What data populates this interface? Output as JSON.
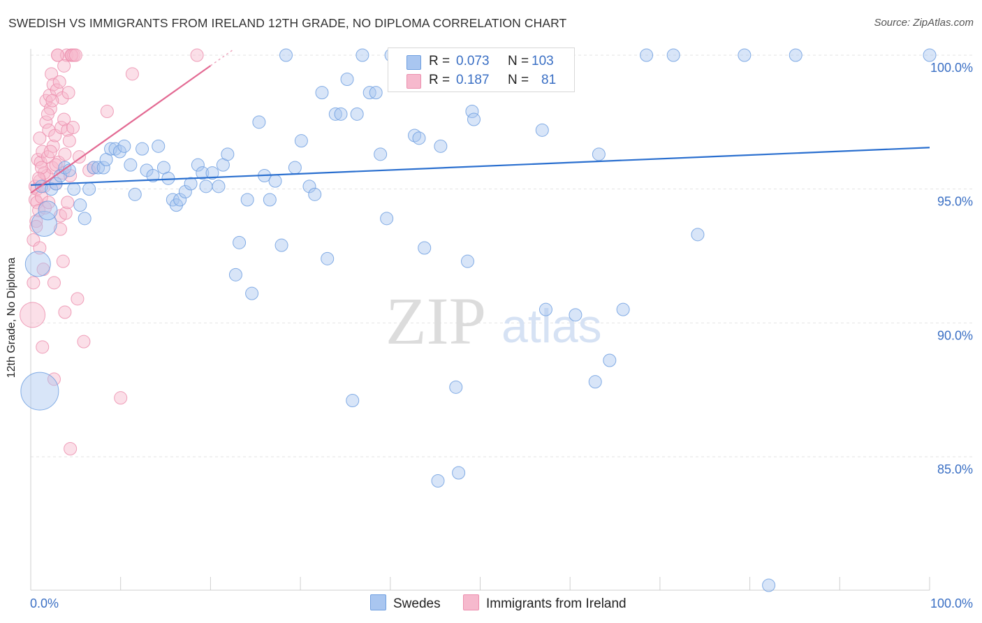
{
  "header": {
    "title": "SWEDISH VS IMMIGRANTS FROM IRELAND 12TH GRADE, NO DIPLOMA CORRELATION CHART",
    "source": "Source: ZipAtlas.com"
  },
  "watermark": {
    "zip": "ZIP",
    "atlas": "atlas"
  },
  "legend": {
    "rows": [
      {
        "r_label": "R =",
        "r_value": "0.073",
        "n_label": "N =",
        "n_value": "103",
        "color": "#a9c6f0"
      },
      {
        "r_label": "R =",
        "r_value": "0.187",
        "n_label": "N =",
        "n_value": "81",
        "color": "#f6b9cd"
      }
    ]
  },
  "bottom_legend": {
    "swedes": "Swedes",
    "ireland": "Immigrants from Ireland"
  },
  "chart_data": {
    "type": "scatter",
    "title": "SWEDISH VS IMMIGRANTS FROM IRELAND 12TH GRADE, NO DIPLOMA CORRELATION CHART",
    "xlabel": "",
    "ylabel": "12th Grade, No Diploma",
    "xlim": [
      0,
      100
    ],
    "ylim": [
      80.2,
      100.7
    ],
    "x_tick_labels": [
      {
        "value": 0,
        "label": "0.0%"
      },
      {
        "value": 100,
        "label": "100.0%"
      }
    ],
    "x_minor_ticks": [
      10,
      20,
      30,
      40,
      50,
      60,
      70,
      80,
      90,
      100
    ],
    "y_ticks": [
      {
        "value": 100,
        "label": "100.0%"
      },
      {
        "value": 95,
        "label": "95.0%"
      },
      {
        "value": 90,
        "label": "90.0%"
      },
      {
        "value": 85,
        "label": "85.0%"
      }
    ],
    "colors": {
      "swedes_fill": "#a9c6f0",
      "swedes_stroke": "#6f9fe0",
      "swedes_line": "#2a6fcf",
      "ireland_fill": "#f6b9cd",
      "ireland_stroke": "#ec8fae",
      "ireland_line": "#e36a93",
      "tick_label": "#3a6fc4",
      "grid": "#e3e3e3"
    },
    "series": [
      {
        "name": "Swedes",
        "trend": {
          "x0": 0,
          "y0": 95.15,
          "x1": 100,
          "y1": 96.55
        },
        "points": [
          [
            1.0,
            87.45,
            3
          ],
          [
            0.8,
            92.2,
            2
          ],
          [
            1.5,
            93.7,
            2
          ],
          [
            1.9,
            94.2,
            1.5
          ],
          [
            1.2,
            95.1,
            1
          ],
          [
            2.3,
            95.0,
            1
          ],
          [
            2.8,
            95.2,
            1
          ],
          [
            3.3,
            95.5,
            1
          ],
          [
            3.8,
            95.8,
            1
          ],
          [
            4.3,
            95.7,
            1
          ],
          [
            4.8,
            95.0,
            1
          ],
          [
            5.5,
            94.4,
            1
          ],
          [
            6.0,
            93.9,
            1
          ],
          [
            6.5,
            95.0,
            1
          ],
          [
            7.0,
            95.8,
            1
          ],
          [
            7.5,
            95.8,
            1
          ],
          [
            8.1,
            95.8,
            1
          ],
          [
            8.4,
            96.1,
            1
          ],
          [
            8.9,
            96.5,
            1
          ],
          [
            9.4,
            96.5,
            1
          ],
          [
            9.9,
            96.4,
            1
          ],
          [
            10.4,
            96.6,
            1
          ],
          [
            11.1,
            95.9,
            1
          ],
          [
            11.6,
            94.8,
            1
          ],
          [
            12.4,
            96.5,
            1
          ],
          [
            12.9,
            95.7,
            1
          ],
          [
            13.6,
            95.5,
            1
          ],
          [
            14.2,
            96.6,
            1
          ],
          [
            14.8,
            95.8,
            1
          ],
          [
            15.3,
            95.4,
            1
          ],
          [
            15.8,
            94.6,
            1
          ],
          [
            16.2,
            94.4,
            1
          ],
          [
            16.6,
            94.6,
            1
          ],
          [
            17.2,
            94.9,
            1
          ],
          [
            17.8,
            95.2,
            1
          ],
          [
            18.6,
            95.9,
            1
          ],
          [
            19.1,
            95.6,
            1
          ],
          [
            19.5,
            95.1,
            1
          ],
          [
            20.2,
            95.6,
            1
          ],
          [
            20.9,
            95.1,
            1
          ],
          [
            21.4,
            95.9,
            1
          ],
          [
            21.9,
            96.3,
            1
          ],
          [
            23.2,
            93.0,
            1
          ],
          [
            22.8,
            91.8,
            1
          ],
          [
            24.1,
            94.6,
            1
          ],
          [
            24.6,
            91.1,
            1
          ],
          [
            25.4,
            97.5,
            1
          ],
          [
            26.0,
            95.5,
            1
          ],
          [
            26.6,
            94.6,
            1
          ],
          [
            27.2,
            95.3,
            1
          ],
          [
            27.9,
            92.9,
            1
          ],
          [
            28.4,
            100.0,
            1
          ],
          [
            29.4,
            95.8,
            1
          ],
          [
            30.1,
            96.8,
            1
          ],
          [
            31.0,
            95.1,
            1
          ],
          [
            31.6,
            94.8,
            1
          ],
          [
            32.4,
            98.6,
            1
          ],
          [
            33.0,
            92.4,
            1
          ],
          [
            33.9,
            97.8,
            1
          ],
          [
            34.5,
            97.8,
            1
          ],
          [
            35.2,
            99.1,
            1
          ],
          [
            35.8,
            87.1,
            1
          ],
          [
            36.3,
            97.8,
            1
          ],
          [
            36.9,
            100.0,
            1
          ],
          [
            37.7,
            98.6,
            1
          ],
          [
            38.4,
            98.6,
            1
          ],
          [
            38.9,
            96.3,
            1
          ],
          [
            39.6,
            93.9,
            1
          ],
          [
            40.1,
            100.0,
            1
          ],
          [
            40.6,
            100.0,
            1
          ],
          [
            41.3,
            99.0,
            1
          ],
          [
            42.0,
            100.0,
            1
          ],
          [
            42.7,
            97.0,
            1
          ],
          [
            43.2,
            96.9,
            1
          ],
          [
            43.8,
            92.8,
            1
          ],
          [
            45.0,
            100.0,
            1
          ],
          [
            45.6,
            96.6,
            1
          ],
          [
            46.1,
            100.0,
            1
          ],
          [
            47.3,
            87.6,
            1
          ],
          [
            48.2,
            100.0,
            1
          ],
          [
            48.6,
            92.3,
            1
          ],
          [
            49.1,
            97.9,
            1
          ],
          [
            51.3,
            100.0,
            1
          ],
          [
            54.2,
            100.0,
            1
          ],
          [
            56.9,
            97.2,
            1
          ],
          [
            57.8,
            100.0,
            1
          ],
          [
            59.7,
            100.0,
            1
          ],
          [
            60.6,
            90.3,
            1
          ],
          [
            62.8,
            87.8,
            1
          ],
          [
            63.2,
            96.3,
            1
          ],
          [
            64.4,
            88.6,
            1
          ],
          [
            65.9,
            90.5,
            1
          ],
          [
            68.5,
            100.0,
            1
          ],
          [
            71.5,
            100.0,
            1
          ],
          [
            74.2,
            93.3,
            1
          ],
          [
            79.4,
            100.0,
            1
          ],
          [
            82.1,
            80.2,
            1
          ],
          [
            85.1,
            100.0,
            1
          ],
          [
            100.0,
            100.0,
            1
          ],
          [
            45.3,
            84.1,
            1
          ],
          [
            47.6,
            84.4,
            1
          ],
          [
            57.3,
            90.5,
            1
          ],
          [
            49.3,
            97.6,
            1
          ]
        ]
      },
      {
        "name": "Immigrants from Ireland",
        "trend": {
          "x0": 0,
          "y0": 94.85,
          "x1": 22.5,
          "y1": 100.2,
          "solid_until_x": 20
        },
        "points": [
          [
            0.2,
            90.3,
            2
          ],
          [
            0.3,
            91.5,
            1
          ],
          [
            0.3,
            93.1,
            1
          ],
          [
            0.5,
            94.6,
            1
          ],
          [
            0.5,
            95.1,
            1
          ],
          [
            0.6,
            93.8,
            1
          ],
          [
            0.7,
            94.5,
            1
          ],
          [
            0.7,
            95.0,
            1
          ],
          [
            0.8,
            96.1,
            1
          ],
          [
            0.9,
            94.2,
            1
          ],
          [
            1.0,
            95.3,
            1
          ],
          [
            1.0,
            92.8,
            1
          ],
          [
            1.1,
            96.0,
            1
          ],
          [
            1.2,
            94.7,
            1
          ],
          [
            1.3,
            96.4,
            1
          ],
          [
            1.3,
            89.1,
            1
          ],
          [
            1.4,
            92.0,
            1
          ],
          [
            1.5,
            95.1,
            1
          ],
          [
            1.6,
            94.3,
            1
          ],
          [
            1.7,
            97.5,
            1
          ],
          [
            1.7,
            98.3,
            1
          ],
          [
            1.8,
            95.5,
            1
          ],
          [
            1.9,
            96.2,
            1
          ],
          [
            2.0,
            97.2,
            1
          ],
          [
            2.1,
            98.5,
            1
          ],
          [
            2.2,
            98.0,
            1
          ],
          [
            2.3,
            99.3,
            1
          ],
          [
            2.4,
            95.8,
            1
          ],
          [
            2.5,
            96.6,
            1
          ],
          [
            2.5,
            98.9,
            1
          ],
          [
            2.6,
            91.5,
            1
          ],
          [
            2.6,
            87.9,
            1
          ],
          [
            2.7,
            97.0,
            1
          ],
          [
            2.8,
            95.2,
            1
          ],
          [
            2.9,
            98.7,
            1
          ],
          [
            3.0,
            100.0,
            1
          ],
          [
            3.1,
            96.0,
            1
          ],
          [
            3.2,
            99.0,
            1
          ],
          [
            3.3,
            94.0,
            1
          ],
          [
            3.4,
            97.3,
            1
          ],
          [
            3.5,
            98.4,
            1
          ],
          [
            3.6,
            92.3,
            1
          ],
          [
            3.6,
            95.6,
            1
          ],
          [
            3.7,
            97.6,
            1
          ],
          [
            3.8,
            96.3,
            1
          ],
          [
            3.8,
            90.4,
            1
          ],
          [
            3.9,
            94.1,
            1
          ],
          [
            4.0,
            100.0,
            1
          ],
          [
            4.1,
            97.2,
            1
          ],
          [
            4.2,
            98.6,
            1
          ],
          [
            4.3,
            96.8,
            1
          ],
          [
            4.4,
            95.5,
            1
          ],
          [
            4.5,
            100.0,
            1
          ],
          [
            4.6,
            100.0,
            1
          ],
          [
            4.7,
            97.3,
            1
          ],
          [
            4.8,
            100.0,
            1
          ],
          [
            5.0,
            100.0,
            1
          ],
          [
            5.2,
            90.9,
            1
          ],
          [
            5.4,
            96.2,
            1
          ],
          [
            5.9,
            89.3,
            1
          ],
          [
            4.4,
            85.3,
            1
          ],
          [
            6.5,
            95.7,
            1
          ],
          [
            7.0,
            95.8,
            1
          ],
          [
            8.5,
            97.9,
            1
          ],
          [
            10.0,
            87.2,
            1
          ],
          [
            11.3,
            99.3,
            1
          ],
          [
            18.5,
            100.0,
            1
          ],
          [
            2.0,
            94.5,
            1
          ],
          [
            1.5,
            95.6,
            1
          ],
          [
            2.2,
            96.4,
            1
          ],
          [
            3.3,
            93.5,
            1
          ],
          [
            1.0,
            96.9,
            1
          ],
          [
            2.8,
            95.9,
            1
          ],
          [
            0.6,
            93.6,
            1
          ],
          [
            1.9,
            97.8,
            1
          ],
          [
            3.7,
            99.6,
            1
          ],
          [
            1.2,
            95.8,
            1
          ],
          [
            0.9,
            95.4,
            1
          ],
          [
            2.4,
            98.3,
            1
          ],
          [
            4.1,
            94.5,
            1
          ],
          [
            3.0,
            100.0,
            1
          ]
        ]
      }
    ]
  }
}
